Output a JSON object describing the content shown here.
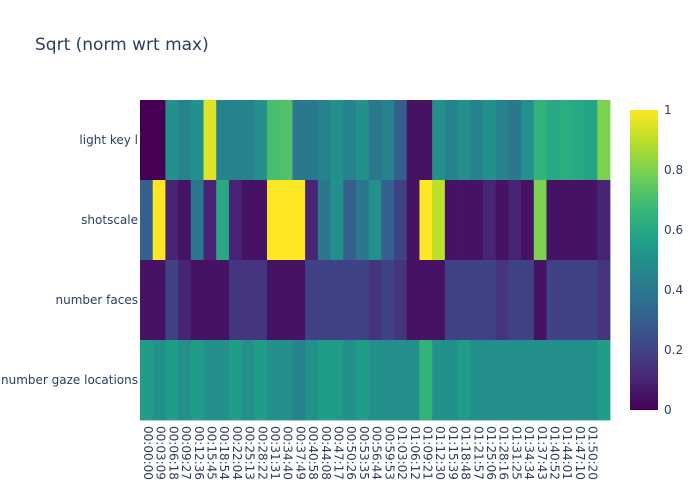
{
  "chart_data": {
    "type": "heatmap",
    "title": "Sqrt (norm wrt max)",
    "rows": [
      "light key l",
      "shotscale",
      "number faces",
      "number gaze locations"
    ],
    "x": [
      "00:00:00",
      "00:03:09",
      "00:06:18",
      "00:09:27",
      "00:12:36",
      "00:15:45",
      "00:18:54",
      "00:22:04",
      "00:25:13",
      "00:28:22",
      "00:31:31",
      "00:34:40",
      "00:37:49",
      "00:40:58",
      "00:44:08",
      "00:47:17",
      "00:50:26",
      "00:53:35",
      "00:56:44",
      "00:59:53",
      "01:03:02",
      "01:06:12",
      "01:09:21",
      "01:12:30",
      "01:15:39",
      "01:18:48",
      "01:21:57",
      "01:25:06",
      "01:28:16",
      "01:31:25",
      "01:34:34",
      "01:37:43",
      "01:40:52",
      "01:44:01",
      "01:47:10",
      "01:50:20",
      null
    ],
    "z": [
      [
        0,
        0,
        0.5,
        0.45,
        0.5,
        0.95,
        0.45,
        0.45,
        0.45,
        0.5,
        0.7,
        0.72,
        0.4,
        0.4,
        0.45,
        0.5,
        0.45,
        0.5,
        0.4,
        0.45,
        0.3,
        0.05,
        0.05,
        0.5,
        0.45,
        0.5,
        0.45,
        0.5,
        0.45,
        0.4,
        0.5,
        0.65,
        0.6,
        0.62,
        0.6,
        0.58,
        0.8
      ],
      [
        0.3,
        1,
        0.1,
        0.05,
        0.4,
        0.1,
        0.6,
        0.1,
        0.05,
        0.05,
        1,
        1,
        1,
        0.1,
        0.4,
        0.5,
        0.3,
        0.4,
        0.5,
        0.3,
        0.2,
        0.05,
        1,
        0.9,
        0.05,
        0.05,
        0.05,
        0.1,
        0.05,
        0.1,
        0.05,
        0.8,
        0.05,
        0.05,
        0.05,
        0.05,
        0.1
      ],
      [
        0.05,
        0.05,
        0.2,
        0.1,
        0.05,
        0.05,
        0.05,
        0.15,
        0.15,
        0.15,
        0.05,
        0.05,
        0.05,
        0.2,
        0.2,
        0.2,
        0.2,
        0.2,
        0.15,
        0.2,
        0.15,
        0.05,
        0.05,
        0.05,
        0.2,
        0.2,
        0.2,
        0.2,
        0.15,
        0.2,
        0.2,
        0.05,
        0.2,
        0.2,
        0.2,
        0.2,
        0.15
      ],
      [
        0.55,
        0.5,
        0.55,
        0.5,
        0.55,
        0.5,
        0.5,
        0.55,
        0.5,
        0.55,
        0.5,
        0.5,
        0.45,
        0.5,
        0.55,
        0.55,
        0.5,
        0.55,
        0.5,
        0.5,
        0.5,
        0.5,
        0.65,
        0.5,
        0.5,
        0.55,
        0.5,
        0.5,
        0.5,
        0.5,
        0.5,
        0.5,
        0.5,
        0.5,
        0.5,
        0.5,
        0.55
      ]
    ],
    "zlim": [
      0,
      1
    ],
    "zticks": [
      0,
      {
        "value": 0.2,
        "label": "0.2"
      },
      {
        "value": 0.4,
        "label": "0.4"
      },
      {
        "value": 0.6,
        "label": "0.6"
      },
      {
        "value": 0.8,
        "label": "0.8"
      },
      1
    ],
    "colorscale": [
      "#440154",
      "#482878",
      "#3e4989",
      "#31688e",
      "#26828e",
      "#1f9e89",
      "#35b779",
      "#6ece58",
      "#b5de2b",
      "#fde725"
    ]
  }
}
